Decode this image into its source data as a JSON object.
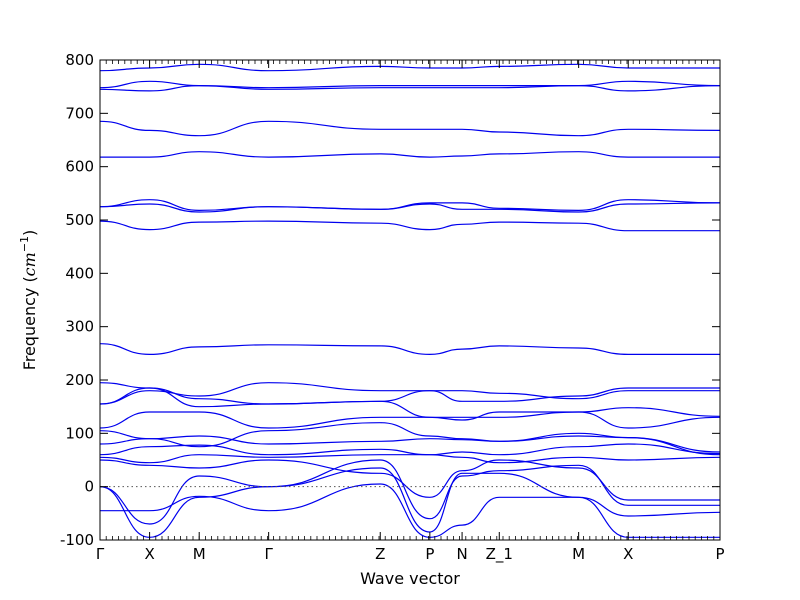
{
  "chart_data": {
    "type": "line",
    "title": "",
    "xlabel": "Wave vector",
    "ylabel": "Frequency ($cm^{-1}$)",
    "ylabel_parts": {
      "main": "Frequency (",
      "var": "cm",
      "exp": "−1",
      "close": ")"
    },
    "xlim": [
      0,
      12.5
    ],
    "ylim": [
      -100,
      800
    ],
    "yticks": [
      -100,
      0,
      100,
      200,
      300,
      400,
      500,
      600,
      700,
      800
    ],
    "kpoints": [
      {
        "label": "Γ",
        "x": 0.0
      },
      {
        "label": "X",
        "x": 1.0
      },
      {
        "label": "M",
        "x": 2.0
      },
      {
        "label": "Γ",
        "x": 3.4
      },
      {
        "label": "Z",
        "x": 5.65
      },
      {
        "label": "P",
        "x": 6.65
      },
      {
        "label": "N",
        "x": 7.3
      },
      {
        "label": "Z_1",
        "x": 8.05
      },
      {
        "label": "M",
        "x": 9.65
      },
      {
        "label": "X",
        "x": 10.65
      },
      {
        "label": "P",
        "x": 12.5
      }
    ],
    "reference_line": {
      "y": 0,
      "style": "dotted"
    },
    "line_color": "#0000ee",
    "bands": [
      {
        "x": [
          0,
          1,
          2,
          3.4,
          5.65,
          6.65,
          7.3,
          8.05,
          9.65,
          10.65,
          12.5
        ],
        "y": [
          -45,
          -45,
          -18,
          -45,
          5,
          -95,
          -72,
          -20,
          -20,
          -55,
          -48
        ]
      },
      {
        "x": [
          0,
          1,
          2,
          3.4,
          5.65,
          6.65,
          7.3,
          8.05,
          9.65,
          10.65,
          12.5
        ],
        "y": [
          0,
          -95,
          -20,
          0,
          35,
          -85,
          25,
          25,
          -20,
          -95,
          -95
        ]
      },
      {
        "x": [
          0,
          1,
          2,
          3.4,
          5.65,
          6.65,
          7.3,
          8.05,
          9.65,
          10.65,
          12.5
        ],
        "y": [
          0,
          -70,
          20,
          0,
          50,
          -60,
          20,
          30,
          40,
          -35,
          -35
        ]
      },
      {
        "x": [
          0,
          1,
          2,
          3.4,
          5.65,
          6.65,
          7.3,
          8.05,
          9.65,
          10.65,
          12.5
        ],
        "y": [
          50,
          40,
          35,
          50,
          25,
          -20,
          30,
          50,
          35,
          -25,
          -25
        ]
      },
      {
        "x": [
          0,
          1,
          2,
          3.4,
          5.65,
          6.65,
          7.3,
          8.05,
          9.65,
          10.65,
          12.5
        ],
        "y": [
          55,
          45,
          60,
          55,
          60,
          60,
          55,
          45,
          55,
          50,
          55
        ]
      },
      {
        "x": [
          0,
          1,
          2,
          3.4,
          5.65,
          6.65,
          7.3,
          8.05,
          9.65,
          10.65,
          12.5
        ],
        "y": [
          60,
          75,
          78,
          60,
          70,
          60,
          65,
          60,
          75,
          80,
          62
        ]
      },
      {
        "x": [
          0,
          1,
          2,
          3.4,
          5.65,
          6.65,
          7.3,
          8.05,
          9.65,
          10.65,
          12.5
        ],
        "y": [
          80,
          90,
          95,
          80,
          85,
          90,
          88,
          85,
          95,
          92,
          65
        ]
      },
      {
        "x": [
          0,
          1,
          2,
          3.4,
          5.65,
          6.65,
          7.3,
          8.05,
          9.65,
          10.65,
          12.5
        ],
        "y": [
          105,
          90,
          75,
          105,
          120,
          95,
          90,
          85,
          100,
          92,
          60
        ]
      },
      {
        "x": [
          0,
          1,
          2,
          3.4,
          5.65,
          6.65,
          7.3,
          8.05,
          9.65,
          10.65,
          12.5
        ],
        "y": [
          110,
          140,
          140,
          110,
          130,
          130,
          130,
          130,
          140,
          110,
          130
        ]
      },
      {
        "x": [
          0,
          1,
          2,
          3.4,
          5.65,
          6.65,
          7.3,
          8.05,
          9.65,
          10.65,
          12.5
        ],
        "y": [
          155,
          185,
          150,
          155,
          160,
          180,
          160,
          160,
          170,
          185,
          185
        ]
      },
      {
        "x": [
          0,
          1,
          2,
          3.4,
          5.65,
          6.65,
          7.3,
          8.05,
          9.65,
          10.65,
          12.5
        ],
        "y": [
          155,
          180,
          170,
          195,
          180,
          180,
          180,
          175,
          165,
          180,
          180
        ]
      },
      {
        "x": [
          0,
          1,
          2,
          3.4,
          5.65,
          6.65,
          7.3,
          8.05,
          9.65,
          10.65,
          12.5
        ],
        "y": [
          195,
          185,
          165,
          155,
          160,
          130,
          125,
          140,
          140,
          148,
          132
        ]
      },
      {
        "x": [
          0,
          1,
          2,
          3.4,
          5.65,
          6.65,
          7.3,
          8.05,
          9.65,
          10.65,
          12.5
        ],
        "y": [
          268,
          248,
          262,
          266,
          264,
          248,
          258,
          264,
          260,
          248,
          248
        ]
      },
      {
        "x": [
          0,
          1,
          2,
          3.4,
          5.65,
          6.65,
          7.3,
          8.05,
          9.65,
          10.65,
          12.5
        ],
        "y": [
          498,
          482,
          496,
          498,
          494,
          482,
          492,
          496,
          494,
          480,
          480
        ]
      },
      {
        "x": [
          0,
          1,
          2,
          3.4,
          5.65,
          6.65,
          7.3,
          8.05,
          9.65,
          10.65,
          12.5
        ],
        "y": [
          525,
          530,
          515,
          525,
          520,
          530,
          520,
          520,
          515,
          530,
          532
        ]
      },
      {
        "x": [
          0,
          1,
          2,
          3.4,
          5.65,
          6.65,
          7.3,
          8.05,
          9.65,
          10.65,
          12.5
        ],
        "y": [
          525,
          538,
          518,
          525,
          520,
          532,
          532,
          522,
          518,
          538,
          532
        ]
      },
      {
        "x": [
          0,
          1,
          2,
          3.4,
          5.65,
          6.65,
          7.3,
          8.05,
          9.65,
          10.65,
          12.5
        ],
        "y": [
          618,
          618,
          628,
          618,
          624,
          618,
          620,
          624,
          628,
          618,
          618
        ]
      },
      {
        "x": [
          0,
          1,
          2,
          3.4,
          5.65,
          6.65,
          7.3,
          8.05,
          9.65,
          10.65,
          12.5
        ],
        "y": [
          685,
          668,
          658,
          685,
          670,
          670,
          670,
          665,
          658,
          670,
          668
        ]
      },
      {
        "x": [
          0,
          1,
          2,
          3.4,
          5.65,
          6.65,
          7.3,
          8.05,
          9.65,
          10.65,
          12.5
        ],
        "y": [
          745,
          742,
          752,
          745,
          748,
          748,
          748,
          748,
          752,
          742,
          752
        ]
      },
      {
        "x": [
          0,
          1,
          2,
          3.4,
          5.65,
          6.65,
          7.3,
          8.05,
          9.65,
          10.65,
          12.5
        ],
        "y": [
          748,
          760,
          752,
          748,
          752,
          752,
          752,
          752,
          752,
          760,
          752
        ]
      },
      {
        "x": [
          0,
          1,
          2,
          3.4,
          5.65,
          6.65,
          7.3,
          8.05,
          9.65,
          10.65,
          12.5
        ],
        "y": [
          780,
          785,
          792,
          780,
          788,
          785,
          785,
          788,
          792,
          785,
          785
        ]
      }
    ]
  }
}
